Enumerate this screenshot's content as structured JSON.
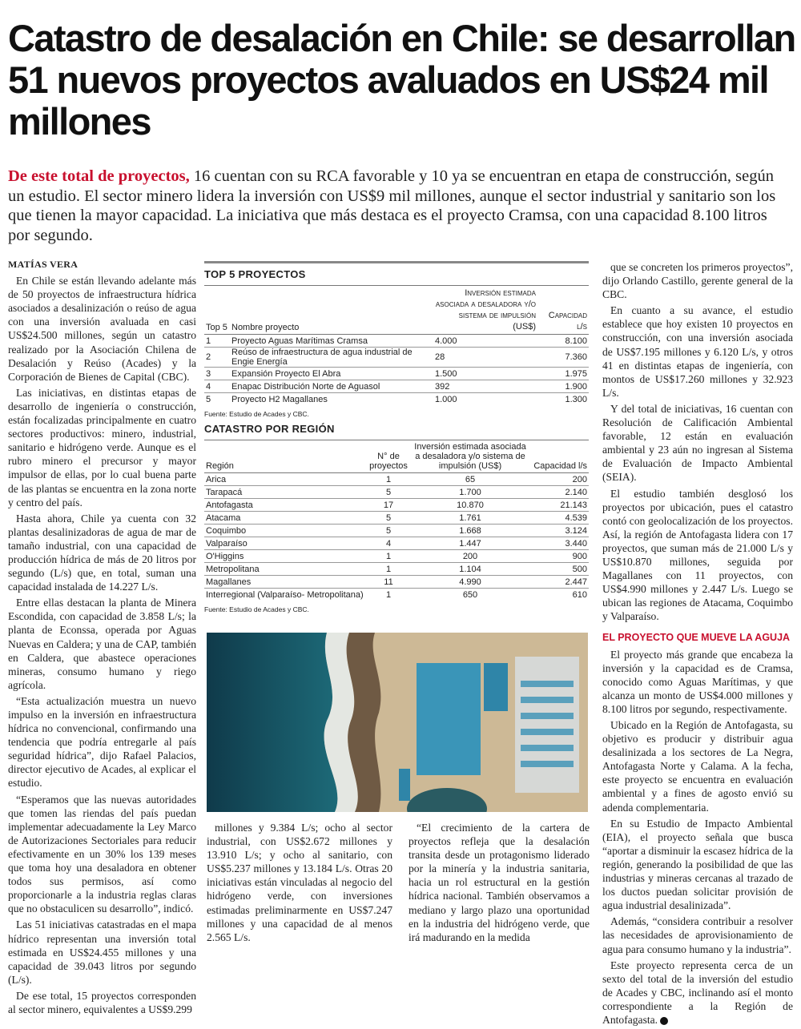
{
  "headline": "Catastro de desalación en Chile: se desarrollan 51 nuevos proyectos avaluados en US$24 mil millones",
  "lead": {
    "highlight": "De este total de proyectos,",
    "text": " 16 cuentan con su RCA favorable y 10 ya se encuentran en etapa de construcción, según un estudio. El sector minero lidera la inversión con US$9 mil millones, aunque el sector industrial y sanitario son los que tienen la mayor capacidad. La iniciativa que más destaca es el proyecto Cramsa, con una capacidad 8.100 litros por segundo."
  },
  "byline": "MATÍAS VERA",
  "left_column": [
    "En Chile se están llevando adelante más de 50 proyectos de infraestructura hídrica asociados a desalinización o reúso de agua con una inversión avaluada en casi US$24.500 millones, según un catastro realizado por la Asociación Chilena de Desalación y Reúso (Acades) y la Corporación de Bienes de Capital (CBC).",
    "Las iniciativas, en distintas etapas de desarrollo de ingeniería o construcción, están focalizadas principalmente en cuatro sectores productivos: minero, industrial, sanitario e hidrógeno verde. Aunque es el rubro minero el precursor y mayor impulsor de ellas, por lo cual buena parte de las plantas se encuentra en la zona norte y centro del país.",
    "Hasta ahora, Chile ya cuenta con 32 plantas desalinizadoras de agua de mar de tamaño industrial, con una capacidad de producción hídrica de más de 20 litros por segundo (L/s) que, en total, suman una capacidad instalada de 14.227 L/s.",
    "Entre ellas destacan la planta de Minera Escondida, con capacidad de 3.858 L/s; la planta de Econssa, operada por Aguas Nuevas en Caldera; y una de CAP, también en Caldera, que abastece operaciones mineras, consumo humano y riego agrícola.",
    "“Esta actualización muestra un nuevo impulso en la inversión en infraestructura hídrica no convencional, confirmando una tendencia que podría entregarle al país seguridad hídrica”, dijo Rafael Palacios, director ejecutivo de Acades, al explicar el estudio.",
    "“Esperamos que las nuevas autoridades que tomen las riendas del país puedan implementar adecuadamente la Ley Marco de Autorizaciones Sectoriales para reducir efectivamente en un 30% los 139 meses que toma hoy una desaladora en obtener todos sus permisos, así como proporcionarle a la industria reglas claras que no obstaculicen su desarrollo”, indicó.",
    "Las 51 iniciativas catastradas en el mapa hídrico representan una inversión total estimada en US$24.455 millones y una capacidad de 39.043 litros por segundo (L/s).",
    "De ese total, 15 proyectos corresponden al sector minero, equivalentes a US$9.299"
  ],
  "top5": {
    "title": "TOP 5 PROYECTOS",
    "headers": [
      "Top 5",
      "Nombre proyecto",
      "Inversión estimada asociada a desaladora y/o sistema de impulsión (US$)",
      "Capacidad l/s"
    ],
    "rows": [
      [
        "1",
        "Proyecto Aguas Marítimas Cramsa",
        "4.000",
        "8.100"
      ],
      [
        "2",
        "Reúso de infraestructura de agua industrial de Engie Energía",
        "28",
        "7.360"
      ],
      [
        "3",
        "Expansión Proyecto El Abra",
        "1.500",
        "1.975"
      ],
      [
        "4",
        "Enapac Distribución Norte de Aguasol",
        "392",
        "1.900"
      ],
      [
        "5",
        "Proyecto H2 Magallanes",
        "1.000",
        "1.300"
      ]
    ],
    "source": "Fuente: Estudio de Acades y CBC."
  },
  "regions": {
    "title": "CATASTRO POR REGIÓN",
    "headers": [
      "Región",
      "N° de proyectos",
      "Inversión estimada asociada a desaladora y/o sistema de impulsión (US$)",
      "Capacidad l/s"
    ],
    "rows": [
      [
        "Arica",
        "1",
        "65",
        "200"
      ],
      [
        "Tarapacá",
        "5",
        "1.700",
        "2.140"
      ],
      [
        "Antofagasta",
        "17",
        "10.870",
        "21.143"
      ],
      [
        "Atacama",
        "5",
        "1.761",
        "4.539"
      ],
      [
        "Coquimbo",
        "5",
        "1.668",
        "3.124"
      ],
      [
        "Valparaíso",
        "4",
        "1.447",
        "3.440"
      ],
      [
        "O'Higgins",
        "1",
        "200",
        "900"
      ],
      [
        "Metropolitana",
        "1",
        "1.104",
        "500"
      ],
      [
        "Magallanes",
        "11",
        "4.990",
        "2.447"
      ],
      [
        "Interregional (Valparaíso- Metropolitana)",
        "1",
        "650",
        "610"
      ]
    ],
    "source": "Fuente: Estudio de Acades y CBC."
  },
  "middle_col_a": [
    "millones y 9.384 L/s; ocho al sector industrial, con US$2.672 millones y 13.910 L/s; y ocho al sanitario, con US$5.237 millones y 13.184 L/s. Otras 20 iniciativas están vinculadas al negocio del hidrógeno verde, con inversiones estimadas preliminarmente en US$7.247 millones y una capacidad de al menos 2.565 L/s."
  ],
  "middle_col_b": [
    "“El crecimiento de la cartera de proyectos refleja que la desalación transita desde un protagonismo liderado por la minería y la industria sanitaria, hacia un rol estructural en la gestión hídrica nacional. También observamos a mediano y largo plazo una oportunidad en la industria del hidrógeno verde, que irá madurando en la medida"
  ],
  "right_column": [
    "que se concreten los primeros proyectos”, dijo Orlando Castillo, gerente general de la CBC.",
    "En cuanto a su avance, el estudio establece que hoy existen 10 proyectos en construcción, con una inversión asociada de US$7.195 millones y 6.120 L/s, y otros 41 en distintas etapas de ingeniería, con montos de US$17.260 millones y 32.923 L/s.",
    "Y del total de iniciativas, 16 cuentan con Resolución de Calificación Ambiental favorable, 12 están en evaluación ambiental y 23 aún no ingresan al Sistema de Evaluación de Impacto Ambiental (SEIA).",
    "El estudio también desglosó los proyectos por ubicación, pues el catastro contó con geolocalización de los proyectos. Así, la región de Antofagasta lidera con 17 proyectos, que suman más de 21.000 L/s y US$10.870 millones, seguida por Magallanes con 11 proyectos, con US$4.990 millones y 2.447 L/s. Luego se ubican las regiones de Atacama, Coquimbo y Valparaíso."
  ],
  "subhead": "EL PROYECTO QUE MUEVE LA AGUJA",
  "right_column_2": [
    "El proyecto más grande que encabeza la inversión y la capacidad es de Cramsa, conocido como Aguas Marítimas, y que alcanza un monto de US$4.000 millones y 8.100 litros por segundo, respectivamente.",
    "Ubicado en la Región de Antofagasta, su objetivo es producir y distribuir agua desalinizada a los sectores de La Negra, Antofagasta Norte y Calama. A la fecha, este proyecto se encuentra en evaluación ambiental y a fines de agosto envió su adenda complementaria.",
    "En su Estudio de Impacto Ambiental (EIA), el proyecto señala que busca “aportar a disminuir la escasez hídrica de la región, generando la posibilidad de que las industrias y mineras cercanas al trazado de los ductos puedan solicitar provisión de agua industrial desalinizada”.",
    "Además, “considera contribuir a resolver las necesidades de aprovisionamiento de agua para consumo humano y la industria”.",
    "Este proyecto representa cerca de un sexto del total de la inversión del estudio de Acades y CBC, inclinando así el monto correspondiente a la Región de Antofagasta."
  ],
  "colors": {
    "accent": "#c8102e",
    "text": "#1a1a1a"
  }
}
